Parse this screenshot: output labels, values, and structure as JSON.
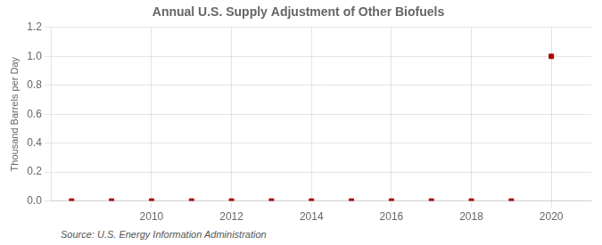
{
  "chart_data": {
    "type": "scatter",
    "title": "Annual U.S. Supply Adjustment of Other Biofuels",
    "y_label": "Thousand Barrels per Day",
    "source": "Source: U.S. Energy Information Administration",
    "x": [
      2008,
      2009,
      2010,
      2011,
      2012,
      2013,
      2014,
      2015,
      2016,
      2017,
      2018,
      2019,
      2020
    ],
    "values": [
      0.0,
      0.0,
      0.0,
      0.0,
      0.0,
      0.0,
      0.0,
      0.0,
      0.0,
      0.0,
      0.0,
      0.0,
      1.0
    ],
    "color": "#aa0000",
    "marker": "square",
    "xlim": [
      2007.5,
      2021.0
    ],
    "xticks": [
      2010,
      2012,
      2014,
      2016,
      2018,
      2020
    ],
    "ylim": [
      0.0,
      1.2
    ],
    "yticks": [
      {
        "value": 0.0,
        "label": "0.0"
      },
      0.2,
      0.4,
      0.6,
      0.8,
      {
        "value": 1.0,
        "label": "1.0"
      },
      1.2
    ],
    "grid": true
  }
}
